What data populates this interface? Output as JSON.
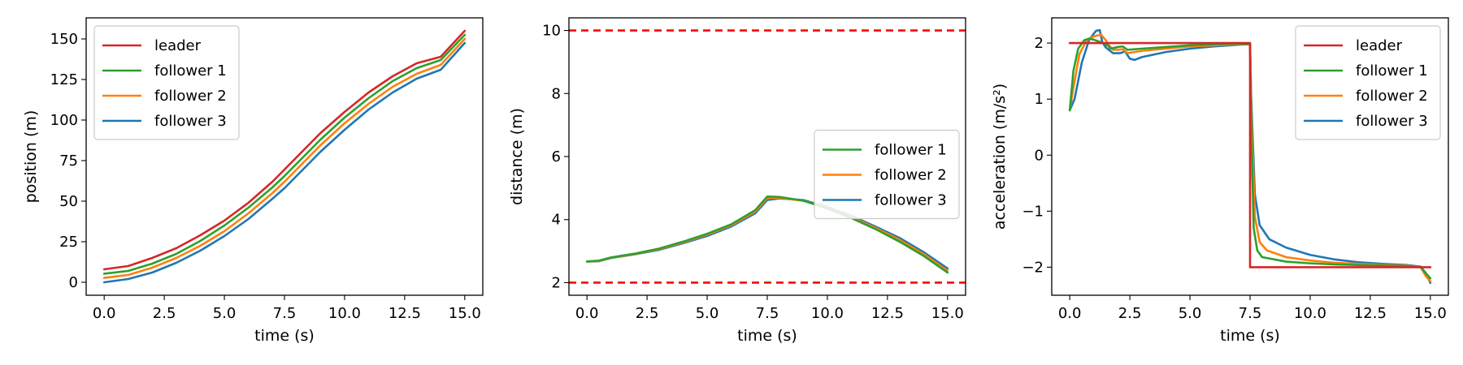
{
  "colors": {
    "leader": "#d62728",
    "follower 1": "#2ca02c",
    "follower 2": "#ff7f0e",
    "follower 3": "#1f77b4",
    "bounds": "#ff0000"
  },
  "chart_data": [
    {
      "type": "line",
      "xlabel": "time (s)",
      "ylabel": "position (m)",
      "xlim": [
        -0.75,
        15.75
      ],
      "ylim": [
        -8,
        163
      ],
      "xticks": [
        0.0,
        2.5,
        5.0,
        7.5,
        10.0,
        12.5,
        15.0
      ],
      "xtick_labels": [
        "0.0",
        "2.5",
        "5.0",
        "7.5",
        "10.0",
        "12.5",
        "15.0"
      ],
      "yticks": [
        0,
        25,
        50,
        75,
        100,
        125,
        150
      ],
      "ytick_labels": [
        "0",
        "25",
        "50",
        "75",
        "100",
        "125",
        "150"
      ],
      "legend": "top-left",
      "grid": false,
      "series": [
        {
          "name": "leader",
          "x": [
            0,
            1,
            2,
            3,
            4,
            5,
            6,
            7,
            7.5,
            8,
            9,
            10,
            11,
            12,
            13,
            14,
            15
          ],
          "y": [
            8,
            10,
            15,
            21,
            29,
            38,
            49,
            62,
            69.5,
            77,
            92,
            105,
            117,
            127,
            135,
            139,
            155
          ]
        },
        {
          "name": "follower 1",
          "x": [
            0,
            1,
            2,
            3,
            4,
            5,
            6,
            7,
            7.5,
            8,
            9,
            10,
            11,
            12,
            13,
            14,
            15
          ],
          "y": [
            5.3,
            7,
            11.5,
            17.5,
            25.5,
            35,
            46,
            58.5,
            65.5,
            73,
            88,
            101.5,
            113.5,
            124,
            132,
            137,
            152.5
          ]
        },
        {
          "name": "follower 2",
          "x": [
            0,
            1,
            2,
            3,
            4,
            5,
            6,
            7,
            7.5,
            8,
            9,
            10,
            11,
            12,
            13,
            14,
            15
          ],
          "y": [
            2.7,
            4.5,
            9,
            15,
            22.5,
            31.5,
            42.5,
            55,
            62,
            69.5,
            84.5,
            98,
            110,
            120.5,
            128.5,
            134,
            150
          ]
        },
        {
          "name": "follower 3",
          "x": [
            0,
            1,
            2,
            3,
            4,
            5,
            6,
            7,
            7.5,
            8,
            9,
            10,
            11,
            12,
            13,
            14,
            15
          ],
          "y": [
            0,
            2,
            6,
            12,
            19.5,
            28.5,
            39,
            51.5,
            58,
            65.5,
            80.5,
            94,
            106.5,
            117,
            125.5,
            131,
            147.5
          ]
        }
      ]
    },
    {
      "type": "line",
      "xlabel": "time (s)",
      "ylabel": "distance (m)",
      "xlim": [
        -0.75,
        15.75
      ],
      "ylim": [
        1.6,
        10.4
      ],
      "xticks": [
        0.0,
        2.5,
        5.0,
        7.5,
        10.0,
        12.5,
        15.0
      ],
      "xtick_labels": [
        "0.0",
        "2.5",
        "5.0",
        "7.5",
        "10.0",
        "12.5",
        "15.0"
      ],
      "yticks": [
        2,
        4,
        6,
        8,
        10
      ],
      "ytick_labels": [
        "2",
        "4",
        "6",
        "8",
        "10"
      ],
      "legend": "center-right",
      "grid": false,
      "hlines": [
        2,
        10
      ],
      "series": [
        {
          "name": "follower 1",
          "x": [
            0,
            0.5,
            1,
            2,
            3,
            4,
            5,
            6,
            7,
            7.5,
            8,
            9,
            10,
            11,
            12,
            13,
            14,
            15
          ],
          "y": [
            2.67,
            2.7,
            2.8,
            2.92,
            3.08,
            3.3,
            3.55,
            3.85,
            4.3,
            4.73,
            4.72,
            4.6,
            4.35,
            4.05,
            3.7,
            3.3,
            2.85,
            2.32
          ]
        },
        {
          "name": "follower 2",
          "x": [
            0,
            0.5,
            1,
            2,
            3,
            4,
            5,
            6,
            7,
            7.5,
            8,
            9,
            10,
            11,
            12,
            13,
            14,
            15
          ],
          "y": [
            2.67,
            2.69,
            2.79,
            2.91,
            3.06,
            3.28,
            3.52,
            3.82,
            4.25,
            4.68,
            4.69,
            4.6,
            4.37,
            4.08,
            3.74,
            3.36,
            2.91,
            2.38
          ]
        },
        {
          "name": "follower 3",
          "x": [
            0,
            0.5,
            1,
            2,
            3,
            4,
            5,
            6,
            7,
            7.5,
            8,
            9,
            10,
            11,
            12,
            13,
            14,
            15
          ],
          "y": [
            2.67,
            2.68,
            2.78,
            2.9,
            3.04,
            3.25,
            3.48,
            3.78,
            4.2,
            4.62,
            4.67,
            4.62,
            4.4,
            4.12,
            3.78,
            3.42,
            2.97,
            2.45
          ]
        }
      ]
    },
    {
      "type": "line",
      "xlabel": "time (s)",
      "ylabel": "acceleration (m/s²)",
      "xlim": [
        -0.75,
        15.75
      ],
      "ylim": [
        -2.5,
        2.45
      ],
      "xticks": [
        0.0,
        2.5,
        5.0,
        7.5,
        10.0,
        12.5,
        15.0
      ],
      "xtick_labels": [
        "0.0",
        "2.5",
        "5.0",
        "7.5",
        "10.0",
        "12.5",
        "15.0"
      ],
      "yticks": [
        -2,
        -1,
        0,
        1,
        2
      ],
      "ytick_labels": [
        "−2",
        "−1",
        "0",
        "1",
        "2"
      ],
      "legend": "top-right",
      "grid": false,
      "series": [
        {
          "name": "leader",
          "x": [
            0,
            7.5,
            7.5,
            15
          ],
          "y": [
            2,
            2,
            -2,
            -2
          ]
        },
        {
          "name": "follower 1",
          "x": [
            0,
            0.15,
            0.35,
            0.6,
            0.8,
            1.0,
            1.4,
            1.6,
            1.7,
            2.0,
            2.2,
            2.4,
            3,
            4,
            5,
            6,
            7,
            7.5,
            7.55,
            7.65,
            7.8,
            8,
            9,
            10,
            11,
            12,
            13,
            14,
            14.6,
            14.8,
            15
          ],
          "y": [
            0.8,
            1.5,
            1.9,
            2.05,
            2.08,
            2.06,
            2.0,
            1.95,
            1.9,
            1.93,
            1.94,
            1.88,
            1.9,
            1.93,
            1.96,
            1.98,
            1.99,
            1.98,
            0.5,
            -1.3,
            -1.7,
            -1.82,
            -1.9,
            -1.93,
            -1.95,
            -1.96,
            -1.97,
            -1.98,
            -2.0,
            -2.1,
            -2.2
          ]
        },
        {
          "name": "follower 2",
          "x": [
            0,
            0.15,
            0.4,
            0.7,
            1.0,
            1.3,
            1.5,
            1.65,
            1.8,
            2.0,
            2.2,
            2.4,
            3,
            4,
            5,
            6,
            7,
            7.5,
            7.55,
            7.7,
            7.9,
            8.2,
            9,
            10,
            11,
            12,
            13,
            14,
            14.6,
            14.8,
            15
          ],
          "y": [
            0.8,
            1.2,
            1.8,
            2.05,
            2.12,
            2.15,
            2.05,
            1.95,
            1.88,
            1.88,
            1.89,
            1.82,
            1.86,
            1.9,
            1.94,
            1.96,
            1.98,
            1.98,
            0.8,
            -1.1,
            -1.55,
            -1.7,
            -1.82,
            -1.88,
            -1.92,
            -1.94,
            -1.96,
            -1.97,
            -2.0,
            -2.15,
            -2.25
          ]
        },
        {
          "name": "follower 3",
          "x": [
            0,
            0.2,
            0.5,
            0.8,
            1.0,
            1.1,
            1.25,
            1.35,
            1.5,
            1.8,
            2.1,
            2.3,
            2.5,
            2.7,
            3,
            4,
            5,
            6,
            7,
            7.5,
            7.55,
            7.7,
            7.9,
            8.3,
            9,
            10,
            11,
            12,
            13,
            14,
            14.6,
            14.8,
            15
          ],
          "y": [
            0.8,
            1.0,
            1.65,
            2.05,
            2.17,
            2.22,
            2.23,
            2.02,
            1.92,
            1.82,
            1.82,
            1.85,
            1.72,
            1.7,
            1.75,
            1.84,
            1.9,
            1.94,
            1.97,
            1.98,
            1.0,
            -0.7,
            -1.25,
            -1.5,
            -1.65,
            -1.78,
            -1.86,
            -1.91,
            -1.94,
            -1.96,
            -1.99,
            -2.1,
            -2.28
          ]
        }
      ]
    }
  ]
}
